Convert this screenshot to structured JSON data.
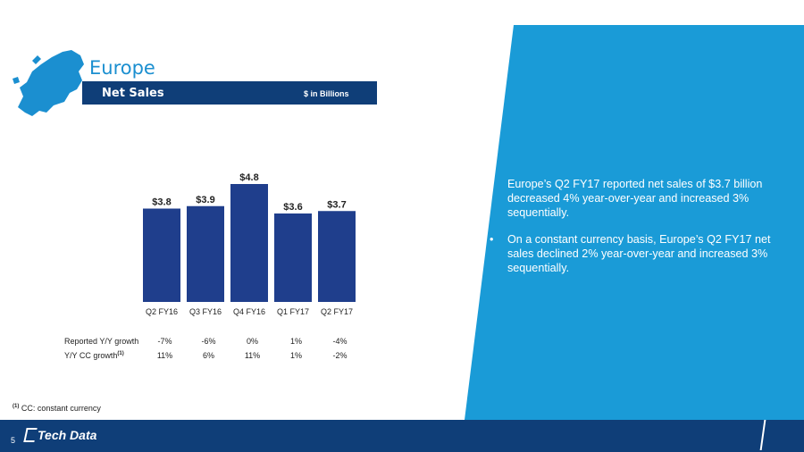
{
  "slide": {
    "region_title": "Europe",
    "header_label": "Net Sales",
    "header_unit": "$ in Billions",
    "page_number": "5",
    "logo_text": "Tech Data",
    "footnote_marker": "(1)",
    "footnote_text": "CC: constant currency"
  },
  "colors": {
    "bar": "#1f3e8c",
    "accent_blue": "#1a9bd7",
    "dark_navy": "#0f3e78",
    "title_blue": "#1b8fd0"
  },
  "chart_data": {
    "type": "bar",
    "categories": [
      "Q2 FY16",
      "Q3 FY16",
      "Q4 FY16",
      "Q1 FY17",
      "Q2 FY17"
    ],
    "values": [
      3.8,
      3.9,
      4.8,
      3.6,
      3.7
    ],
    "data_labels": [
      "$3.8",
      "$3.9",
      "$4.8",
      "$3.6",
      "$3.7"
    ],
    "ylim": [
      0,
      4.8
    ]
  },
  "growth_table": {
    "rows": [
      {
        "label": "Reported Y/Y growth",
        "sup": "",
        "values": [
          "-7%",
          "-6%",
          "0%",
          "1%",
          "-4%"
        ]
      },
      {
        "label": "Y/Y CC growth",
        "sup": "(1)",
        "values": [
          "11%",
          "6%",
          "11%",
          "1%",
          "-2%"
        ]
      }
    ]
  },
  "bullets": [
    "Europe’s Q2 FY17 reported net sales of $3.7 billion decreased 4% year-over-year and increased  3% sequentially.",
    "On a constant currency basis, Europe’s Q2 FY17 net sales declined 2% year-over-year and increased 3% sequentially."
  ]
}
